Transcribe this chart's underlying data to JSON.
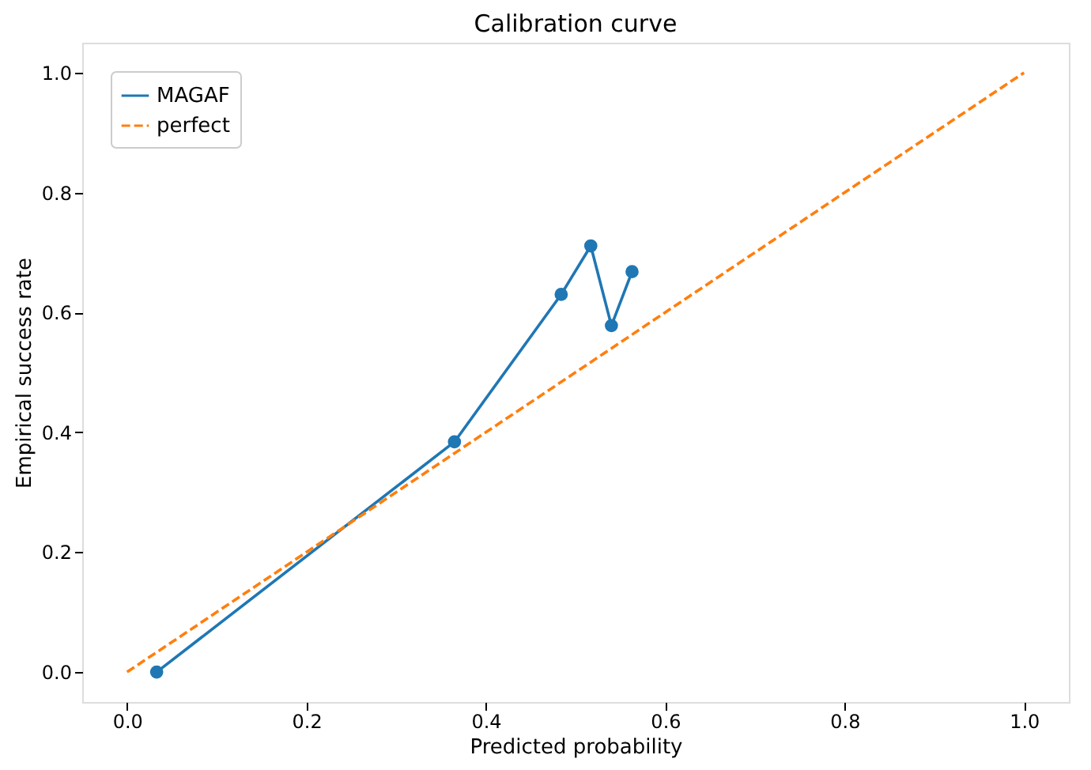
{
  "chart_data": {
    "type": "line",
    "title": "Calibration curve",
    "xlabel": "Predicted probability",
    "ylabel": "Empirical success rate",
    "xlim": [
      -0.05,
      1.05
    ],
    "ylim": [
      -0.05,
      1.05
    ],
    "xticks": [
      {
        "value": 0,
        "label": "0.0"
      },
      0.2,
      0.4,
      0.6,
      0.8,
      {
        "value": 1,
        "label": "1.0"
      }
    ],
    "yticks": [
      {
        "value": 0,
        "label": "0.0"
      },
      0.2,
      0.4,
      0.6,
      0.8,
      {
        "value": 1,
        "label": "1.0"
      }
    ],
    "grid": false,
    "legend": "top left",
    "series": [
      {
        "name": "MAGAF",
        "color": "#1f77b4",
        "marker": "circle",
        "line_style": "solid",
        "x": [
          0.033,
          0.365,
          0.484,
          0.517,
          0.54,
          0.563
        ],
        "values": [
          0.0,
          0.384,
          0.63,
          0.711,
          0.578,
          0.668
        ]
      },
      {
        "name": "perfect",
        "color": "#ff7f0e",
        "marker": "none",
        "line_style": "dashed",
        "x": [
          0.0,
          1.0
        ],
        "values": [
          0.0,
          1.0
        ]
      }
    ]
  }
}
